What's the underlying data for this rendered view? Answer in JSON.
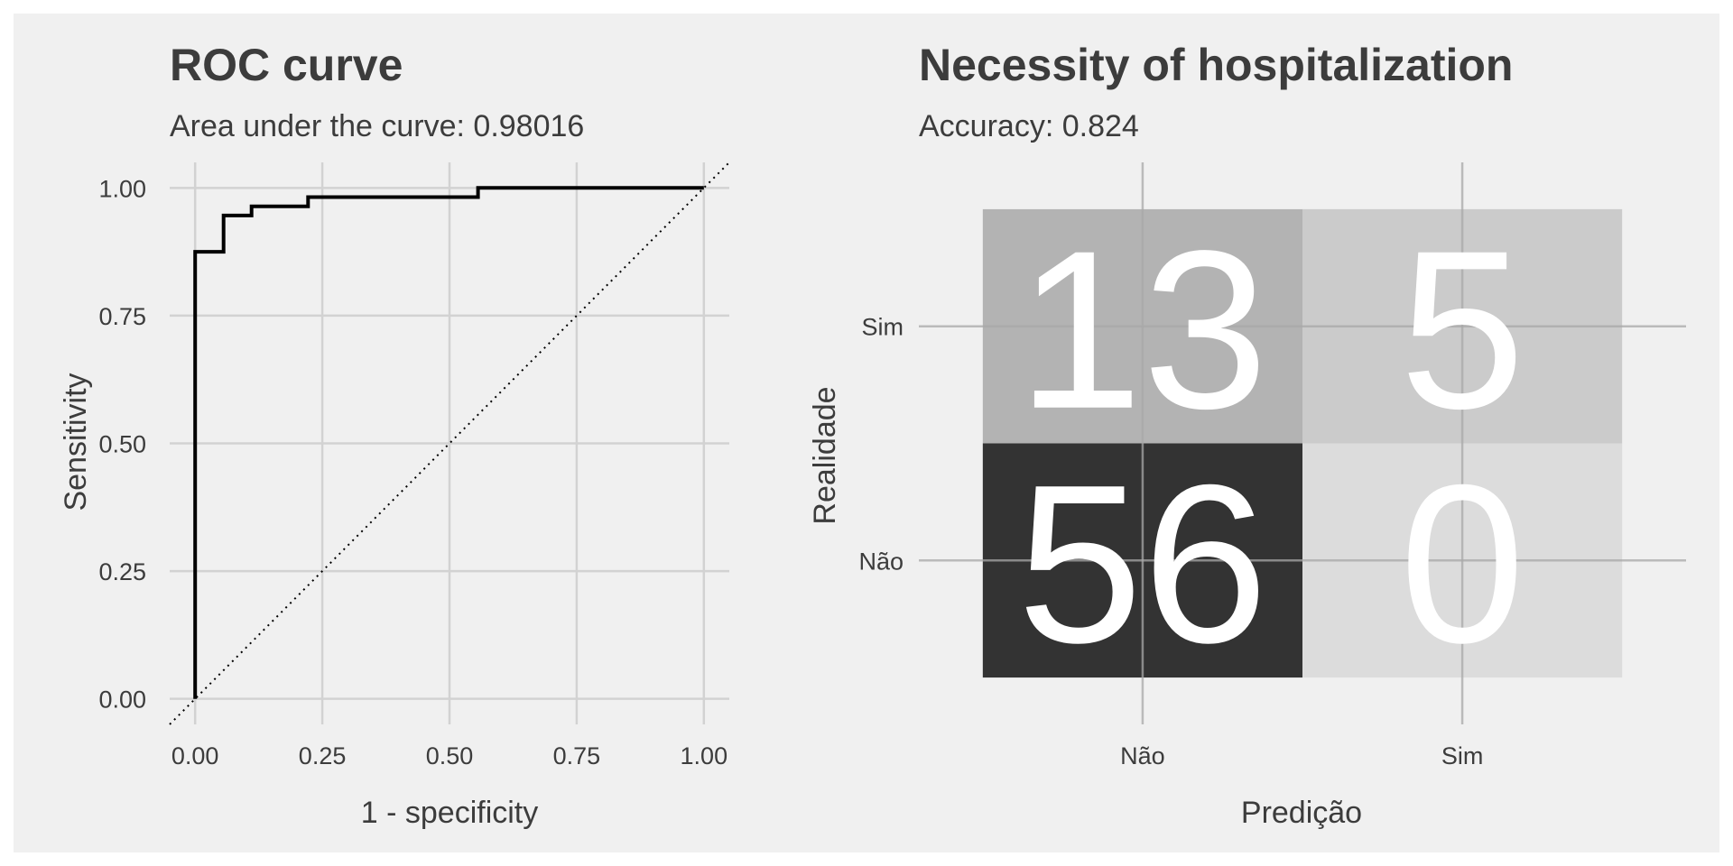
{
  "chart_data": [
    {
      "type": "line",
      "title": "ROC curve",
      "subtitle": "Area under the curve: 0.98016",
      "xlabel": "1 - specificity",
      "ylabel": "Sensitivity",
      "xlim": [
        -0.05,
        1.05
      ],
      "ylim": [
        -0.05,
        1.05
      ],
      "x_ticks": [
        0,
        0.25,
        0.5,
        0.75,
        1
      ],
      "x_tick_labels": [
        "0.00",
        "0.25",
        "0.50",
        "0.75",
        "1.00"
      ],
      "y_ticks": [
        0,
        0.25,
        0.5,
        0.75,
        1
      ],
      "y_tick_labels": [
        "0.00",
        "0.25",
        "0.50",
        "0.75",
        "1.00"
      ],
      "grid": true,
      "roc_points": [
        [
          0,
          0
        ],
        [
          0,
          0.875
        ],
        [
          0.056,
          0.875
        ],
        [
          0.056,
          0.946
        ],
        [
          0.111,
          0.946
        ],
        [
          0.111,
          0.964
        ],
        [
          0.222,
          0.964
        ],
        [
          0.222,
          0.982
        ],
        [
          0.556,
          0.982
        ],
        [
          0.556,
          1.0
        ],
        [
          1.0,
          1.0
        ]
      ],
      "reference_line": [
        [
          -0.05,
          -0.05
        ],
        [
          1.05,
          1.05
        ]
      ],
      "colors": {
        "curve": "#000000",
        "reference": "#000000",
        "grid": "#d2d2d2",
        "text": "#3c3c3c",
        "background": "#f0f0f0"
      }
    },
    {
      "type": "heatmap",
      "title": "Necessity of hospitalization",
      "subtitle": "Accuracy: 0.824",
      "xlabel": "Predição",
      "ylabel": "Realidade",
      "x_categories": [
        "Não",
        "Sim"
      ],
      "y_categories": [
        "Não",
        "Sim"
      ],
      "cells": [
        {
          "predicted": "Não",
          "actual": "Sim",
          "value": 13,
          "fill": "#b3b3b3"
        },
        {
          "predicted": "Sim",
          "actual": "Sim",
          "value": 5,
          "fill": "#cbcbcb"
        },
        {
          "predicted": "Não",
          "actual": "Não",
          "value": 56,
          "fill": "#333333"
        },
        {
          "predicted": "Sim",
          "actual": "Não",
          "value": 0,
          "fill": "#dcdcdc"
        }
      ],
      "grid": true,
      "colors": {
        "label": "#ffffff",
        "grid": "#a8a8a8",
        "text": "#3c3c3c",
        "background": "#f0f0f0"
      }
    }
  ]
}
